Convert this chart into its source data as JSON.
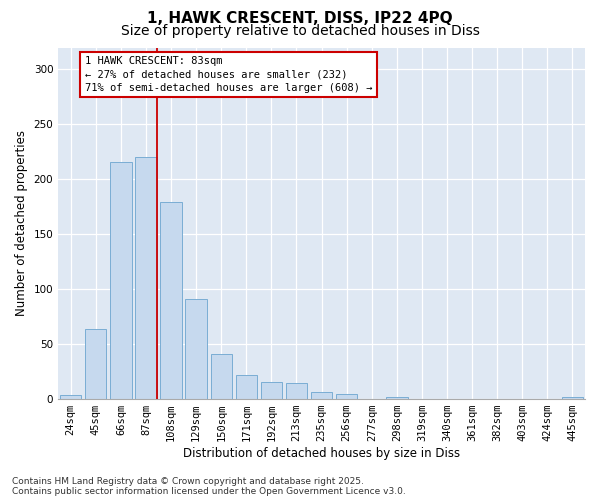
{
  "title_line1": "1, HAWK CRESCENT, DISS, IP22 4PQ",
  "title_line2": "Size of property relative to detached houses in Diss",
  "xlabel": "Distribution of detached houses by size in Diss",
  "ylabel": "Number of detached properties",
  "categories": [
    "24sqm",
    "45sqm",
    "66sqm",
    "87sqm",
    "108sqm",
    "129sqm",
    "150sqm",
    "171sqm",
    "192sqm",
    "213sqm",
    "235sqm",
    "256sqm",
    "277sqm",
    "298sqm",
    "319sqm",
    "340sqm",
    "361sqm",
    "382sqm",
    "403sqm",
    "424sqm",
    "445sqm"
  ],
  "values": [
    4,
    64,
    216,
    220,
    179,
    91,
    41,
    22,
    16,
    15,
    6,
    5,
    0,
    2,
    0,
    0,
    0,
    0,
    0,
    0,
    2
  ],
  "bar_color": "#c6d9ee",
  "bar_edge_color": "#7aadd4",
  "vline_x_index": 3,
  "vline_color": "#cc0000",
  "annotation_text": "1 HAWK CRESCENT: 83sqm\n← 27% of detached houses are smaller (232)\n71% of semi-detached houses are larger (608) →",
  "ylim": [
    0,
    320
  ],
  "yticks": [
    0,
    50,
    100,
    150,
    200,
    250,
    300
  ],
  "background_color": "#dfe8f3",
  "grid_color": "#ffffff",
  "footer_text": "Contains HM Land Registry data © Crown copyright and database right 2025.\nContains public sector information licensed under the Open Government Licence v3.0.",
  "title_fontsize": 11,
  "subtitle_fontsize": 10,
  "axis_label_fontsize": 8.5,
  "tick_fontsize": 7.5,
  "annotation_fontsize": 7.5,
  "footer_fontsize": 6.5
}
